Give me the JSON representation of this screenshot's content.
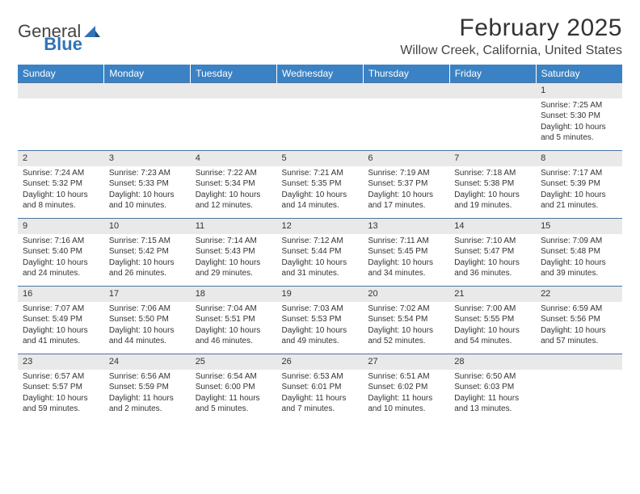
{
  "logo": {
    "text1": "General",
    "text2": "Blue"
  },
  "title": "February 2025",
  "location": "Willow Creek, California, United States",
  "colors": {
    "header_bg": "#3b82c4",
    "header_text": "#ffffff",
    "daynum_bg": "#e9e9e9",
    "rule": "#4a74a0",
    "logo_blue": "#3173b7"
  },
  "day_headers": [
    "Sunday",
    "Monday",
    "Tuesday",
    "Wednesday",
    "Thursday",
    "Friday",
    "Saturday"
  ],
  "weeks": [
    [
      null,
      null,
      null,
      null,
      null,
      null,
      {
        "n": "1",
        "sr": "Sunrise: 7:25 AM",
        "ss": "Sunset: 5:30 PM",
        "dl": "Daylight: 10 hours and 5 minutes."
      }
    ],
    [
      {
        "n": "2",
        "sr": "Sunrise: 7:24 AM",
        "ss": "Sunset: 5:32 PM",
        "dl": "Daylight: 10 hours and 8 minutes."
      },
      {
        "n": "3",
        "sr": "Sunrise: 7:23 AM",
        "ss": "Sunset: 5:33 PM",
        "dl": "Daylight: 10 hours and 10 minutes."
      },
      {
        "n": "4",
        "sr": "Sunrise: 7:22 AM",
        "ss": "Sunset: 5:34 PM",
        "dl": "Daylight: 10 hours and 12 minutes."
      },
      {
        "n": "5",
        "sr": "Sunrise: 7:21 AM",
        "ss": "Sunset: 5:35 PM",
        "dl": "Daylight: 10 hours and 14 minutes."
      },
      {
        "n": "6",
        "sr": "Sunrise: 7:19 AM",
        "ss": "Sunset: 5:37 PM",
        "dl": "Daylight: 10 hours and 17 minutes."
      },
      {
        "n": "7",
        "sr": "Sunrise: 7:18 AM",
        "ss": "Sunset: 5:38 PM",
        "dl": "Daylight: 10 hours and 19 minutes."
      },
      {
        "n": "8",
        "sr": "Sunrise: 7:17 AM",
        "ss": "Sunset: 5:39 PM",
        "dl": "Daylight: 10 hours and 21 minutes."
      }
    ],
    [
      {
        "n": "9",
        "sr": "Sunrise: 7:16 AM",
        "ss": "Sunset: 5:40 PM",
        "dl": "Daylight: 10 hours and 24 minutes."
      },
      {
        "n": "10",
        "sr": "Sunrise: 7:15 AM",
        "ss": "Sunset: 5:42 PM",
        "dl": "Daylight: 10 hours and 26 minutes."
      },
      {
        "n": "11",
        "sr": "Sunrise: 7:14 AM",
        "ss": "Sunset: 5:43 PM",
        "dl": "Daylight: 10 hours and 29 minutes."
      },
      {
        "n": "12",
        "sr": "Sunrise: 7:12 AM",
        "ss": "Sunset: 5:44 PM",
        "dl": "Daylight: 10 hours and 31 minutes."
      },
      {
        "n": "13",
        "sr": "Sunrise: 7:11 AM",
        "ss": "Sunset: 5:45 PM",
        "dl": "Daylight: 10 hours and 34 minutes."
      },
      {
        "n": "14",
        "sr": "Sunrise: 7:10 AM",
        "ss": "Sunset: 5:47 PM",
        "dl": "Daylight: 10 hours and 36 minutes."
      },
      {
        "n": "15",
        "sr": "Sunrise: 7:09 AM",
        "ss": "Sunset: 5:48 PM",
        "dl": "Daylight: 10 hours and 39 minutes."
      }
    ],
    [
      {
        "n": "16",
        "sr": "Sunrise: 7:07 AM",
        "ss": "Sunset: 5:49 PM",
        "dl": "Daylight: 10 hours and 41 minutes."
      },
      {
        "n": "17",
        "sr": "Sunrise: 7:06 AM",
        "ss": "Sunset: 5:50 PM",
        "dl": "Daylight: 10 hours and 44 minutes."
      },
      {
        "n": "18",
        "sr": "Sunrise: 7:04 AM",
        "ss": "Sunset: 5:51 PM",
        "dl": "Daylight: 10 hours and 46 minutes."
      },
      {
        "n": "19",
        "sr": "Sunrise: 7:03 AM",
        "ss": "Sunset: 5:53 PM",
        "dl": "Daylight: 10 hours and 49 minutes."
      },
      {
        "n": "20",
        "sr": "Sunrise: 7:02 AM",
        "ss": "Sunset: 5:54 PM",
        "dl": "Daylight: 10 hours and 52 minutes."
      },
      {
        "n": "21",
        "sr": "Sunrise: 7:00 AM",
        "ss": "Sunset: 5:55 PM",
        "dl": "Daylight: 10 hours and 54 minutes."
      },
      {
        "n": "22",
        "sr": "Sunrise: 6:59 AM",
        "ss": "Sunset: 5:56 PM",
        "dl": "Daylight: 10 hours and 57 minutes."
      }
    ],
    [
      {
        "n": "23",
        "sr": "Sunrise: 6:57 AM",
        "ss": "Sunset: 5:57 PM",
        "dl": "Daylight: 10 hours and 59 minutes."
      },
      {
        "n": "24",
        "sr": "Sunrise: 6:56 AM",
        "ss": "Sunset: 5:59 PM",
        "dl": "Daylight: 11 hours and 2 minutes."
      },
      {
        "n": "25",
        "sr": "Sunrise: 6:54 AM",
        "ss": "Sunset: 6:00 PM",
        "dl": "Daylight: 11 hours and 5 minutes."
      },
      {
        "n": "26",
        "sr": "Sunrise: 6:53 AM",
        "ss": "Sunset: 6:01 PM",
        "dl": "Daylight: 11 hours and 7 minutes."
      },
      {
        "n": "27",
        "sr": "Sunrise: 6:51 AM",
        "ss": "Sunset: 6:02 PM",
        "dl": "Daylight: 11 hours and 10 minutes."
      },
      {
        "n": "28",
        "sr": "Sunrise: 6:50 AM",
        "ss": "Sunset: 6:03 PM",
        "dl": "Daylight: 11 hours and 13 minutes."
      },
      null
    ]
  ]
}
